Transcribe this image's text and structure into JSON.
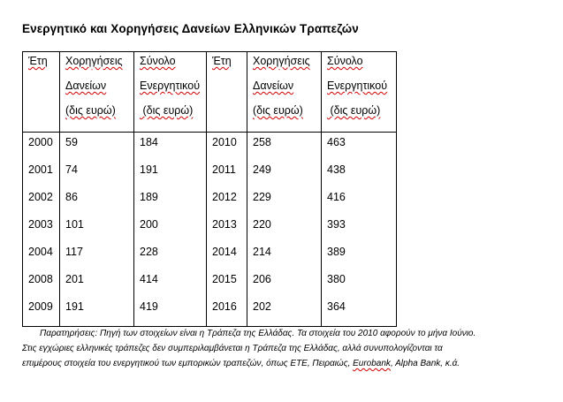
{
  "title": "Ενεργητικό και Χορηγήσεις Δανείων Ελληνικών Τραπεζών",
  "table": {
    "headers": [
      [
        "Έτη"
      ],
      [
        "Χορηγήσεις",
        "Δανείων",
        "(δις ευρώ)"
      ],
      [
        "Σύνολο",
        "Ενεργητικού",
        " (δις ευρώ)"
      ],
      [
        "Έτη"
      ],
      [
        "Χορηγήσεις",
        "Δανείων",
        "(δις ευρώ)"
      ],
      [
        "Σύνολο",
        "Ενεργητικού",
        " (δις ευρώ)"
      ]
    ],
    "columns": [
      [
        "2000",
        "2001",
        "2002",
        "2003",
        "2004",
        "2008",
        "2009"
      ],
      [
        "59",
        "74",
        "86",
        "101",
        "117",
        "201",
        "191"
      ],
      [
        "184",
        "191",
        "189",
        "200",
        "228",
        "414",
        "419"
      ],
      [
        "2010",
        "2011",
        "2012",
        "2013",
        "2014",
        "2015",
        "2016"
      ],
      [
        "258",
        "249",
        "229",
        "220",
        "214",
        "206",
        "202"
      ],
      [
        "463",
        "438",
        "416",
        "393",
        "389",
        "380",
        "364"
      ]
    ]
  },
  "notes": {
    "line1": "Παρατηρήσεις: Πηγή των στοιχείων είναι η Τράπεζα της Ελλάδας. Τα στοιχεία του 2010 αφορούν το μήνα Ιούνιο.",
    "line2": "Στις εγχώριες ελληνικές τράπεζες δεν συμπεριλαμβάνεται η Τράπεζα της Ελλάδας, αλλά συνυπολογίζονται τα",
    "line3a": "επιμέρους στοιχεία του ενεργητικού των εμπορικών τραπεζών, όπως ΕΤΕ, Πειραιώς, ",
    "line3b": "Eurobank",
    "line3c": ", Alpha Bank, κ.ά."
  }
}
